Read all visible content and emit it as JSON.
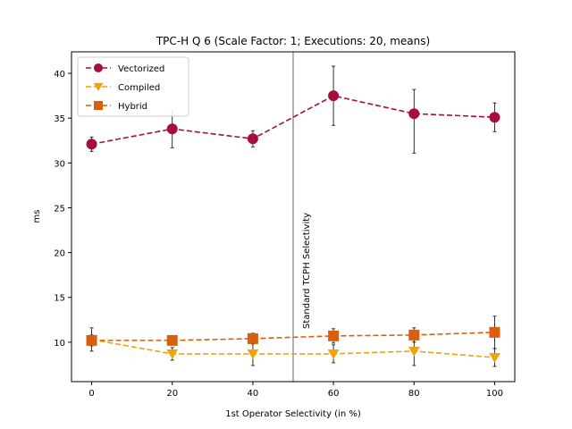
{
  "chart_data": {
    "type": "line",
    "title": "TPC-H Q 6 (Scale Factor: 1; Executions: 20, means)",
    "xlabel": "1st Operator Selectivity (in %)",
    "ylabel": "ms",
    "xlim": [
      -5,
      105
    ],
    "ylim": [
      5.6,
      42.4
    ],
    "xticks": [
      0,
      20,
      40,
      60,
      80,
      100
    ],
    "yticks": [
      10,
      15,
      20,
      25,
      30,
      35,
      40
    ],
    "grid": false,
    "legend_position": "top-left",
    "x": [
      0,
      20,
      40,
      60,
      80,
      100
    ],
    "series": [
      {
        "name": "Vectorized",
        "color": "#a50f3a",
        "marker": "circle",
        "values": [
          32.1,
          33.8,
          32.7,
          37.5,
          35.5,
          35.1
        ],
        "err_low": [
          31.3,
          31.7,
          31.8,
          34.2,
          31.1,
          33.5
        ],
        "err_high": [
          32.9,
          35.9,
          33.6,
          40.8,
          38.2,
          36.7
        ]
      },
      {
        "name": "Compiled",
        "color": "#f0a30a",
        "marker": "triangle-down",
        "values": [
          10.3,
          8.7,
          8.7,
          8.7,
          9.0,
          8.3
        ],
        "err_low": [
          9.0,
          8.0,
          7.4,
          7.7,
          7.4,
          7.3
        ],
        "err_high": [
          11.6,
          9.4,
          10.0,
          9.7,
          10.6,
          9.3
        ]
      },
      {
        "name": "Hybrid",
        "color": "#d95f0e",
        "marker": "square",
        "values": [
          10.2,
          10.2,
          10.4,
          10.7,
          10.8,
          11.1
        ],
        "err_low": [
          9.6,
          9.7,
          9.8,
          9.9,
          10.0,
          9.3
        ],
        "err_high": [
          10.8,
          10.7,
          11.0,
          11.5,
          11.6,
          12.9
        ]
      }
    ],
    "annotation": {
      "x": 50,
      "text": "Standard TCPH Selectivity",
      "line_color": "#808080"
    }
  }
}
